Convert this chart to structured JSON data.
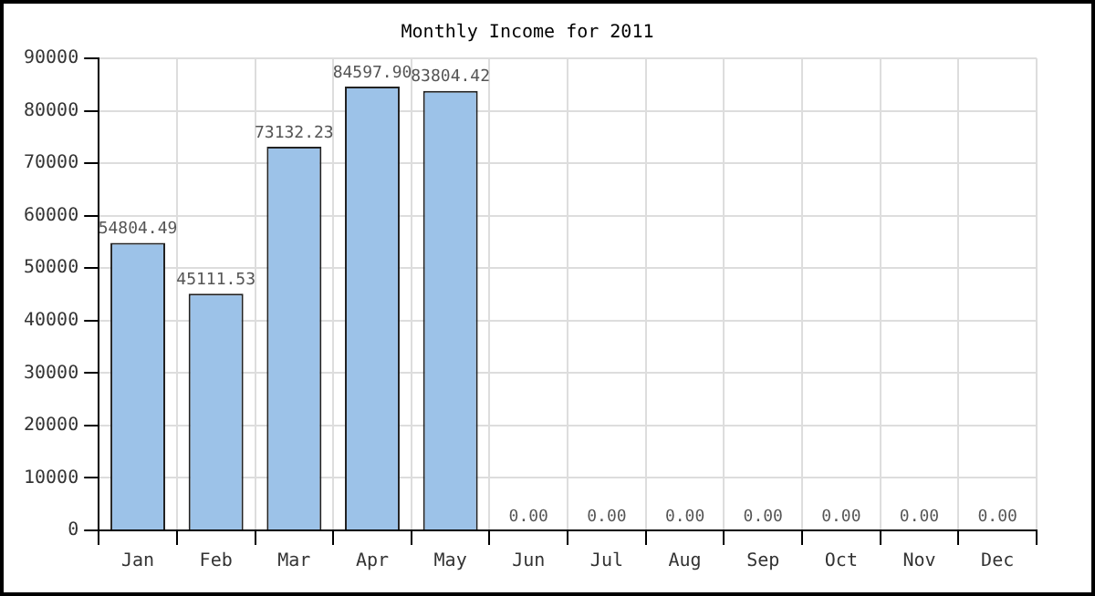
{
  "chart_data": {
    "type": "bar",
    "title": "Monthly Income for 2011",
    "categories": [
      "Jan",
      "Feb",
      "Mar",
      "Apr",
      "May",
      "Jun",
      "Jul",
      "Aug",
      "Sep",
      "Oct",
      "Nov",
      "Dec"
    ],
    "values": [
      54804.49,
      45111.53,
      73132.23,
      84597.9,
      83804.42,
      0,
      0,
      0,
      0,
      0,
      0,
      0
    ],
    "value_labels": [
      "54804.49",
      "45111.53",
      "73132.23",
      "84597.90",
      "83804.42",
      "0.00",
      "0.00",
      "0.00",
      "0.00",
      "0.00",
      "0.00",
      "0.00"
    ],
    "color": "#9cc2e8",
    "ylim": [
      0,
      90000
    ],
    "yticks": [
      0,
      10000,
      20000,
      30000,
      40000,
      50000,
      60000,
      70000,
      80000,
      90000
    ],
    "grid": true
  }
}
